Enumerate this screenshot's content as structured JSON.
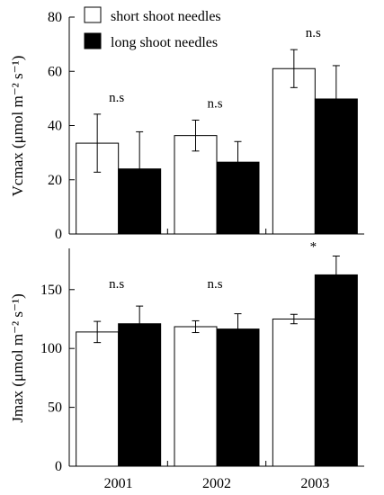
{
  "legend": [
    {
      "label": "short shoot needles",
      "color": "#ffffff"
    },
    {
      "label": "long shoot needles",
      "color": "#000000"
    }
  ],
  "chart_data": [
    {
      "type": "bar",
      "categories": [
        "2001",
        "2002",
        "2003"
      ],
      "ylabel": "Vcmax (μmol m⁻² s⁻¹)",
      "ylim": [
        0,
        80
      ],
      "yticks": [
        0,
        20,
        40,
        60,
        80
      ],
      "series": [
        {
          "name": "short shoot needles",
          "color": "#ffffff",
          "values": [
            33.5,
            36.3,
            61
          ],
          "errors": [
            10.7,
            5.7,
            7
          ]
        },
        {
          "name": "long shoot needles",
          "color": "#000000",
          "values": [
            24,
            26.5,
            49.8
          ],
          "errors": [
            13.7,
            7.6,
            12.3
          ]
        }
      ],
      "annotations": [
        "n.s",
        "n.s",
        "n.s"
      ]
    },
    {
      "type": "bar",
      "categories": [
        "2001",
        "2002",
        "2003"
      ],
      "ylabel": "Jmax (μmol m⁻² s⁻¹)",
      "ylim": [
        0,
        185
      ],
      "yticks": [
        0,
        50,
        100,
        150
      ],
      "series": [
        {
          "name": "short shoot needles",
          "color": "#ffffff",
          "values": [
            114,
            118.5,
            125
          ],
          "errors": [
            9,
            5,
            4
          ]
        },
        {
          "name": "long shoot needles",
          "color": "#000000",
          "values": [
            121,
            116.5,
            162.5
          ],
          "errors": [
            15,
            13,
            16
          ]
        }
      ],
      "annotations": [
        "n.s",
        "n.s",
        "*"
      ]
    }
  ]
}
